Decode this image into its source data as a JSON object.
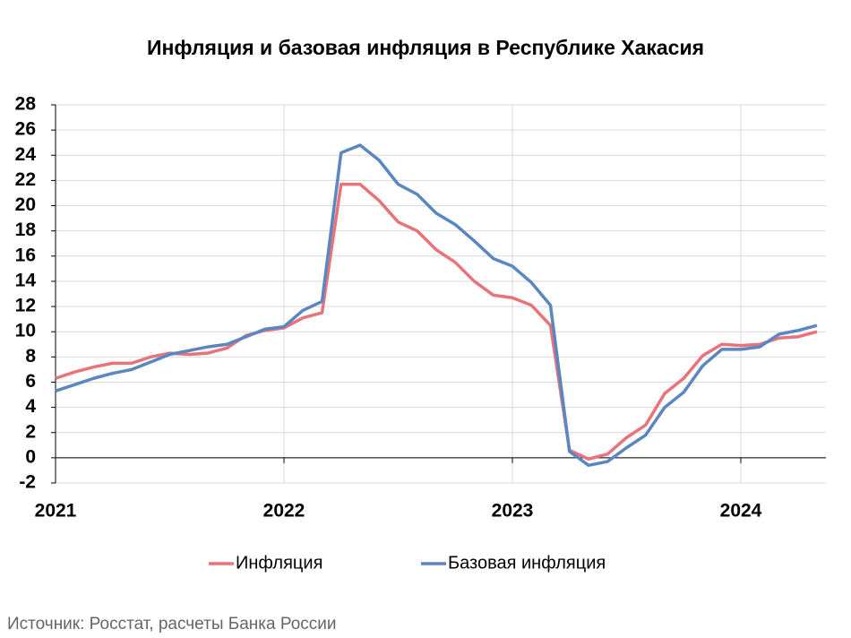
{
  "chart_data": {
    "type": "line",
    "title": "Инфляция и базовая инфляция в Республике Хакасия",
    "source": "Источник: Росстат, расчеты Банка России",
    "categories": [
      "2021",
      null,
      null,
      null,
      null,
      null,
      null,
      null,
      null,
      null,
      null,
      null,
      "2022",
      null,
      null,
      null,
      null,
      null,
      null,
      null,
      null,
      null,
      null,
      null,
      "2023",
      null,
      null,
      null,
      null,
      null,
      null,
      null,
      null,
      null,
      null,
      null,
      "2024",
      null,
      null,
      null,
      null
    ],
    "series": [
      {
        "name": "Инфляция",
        "color": "#e8737a",
        "values": [
          6.3,
          6.8,
          7.2,
          7.5,
          7.5,
          8.0,
          8.3,
          8.2,
          8.3,
          8.7,
          9.7,
          10.1,
          10.3,
          11.1,
          11.5,
          21.7,
          21.7,
          20.4,
          18.7,
          18.0,
          16.5,
          15.5,
          14.0,
          12.9,
          12.7,
          12.1,
          10.5,
          0.6,
          -0.1,
          0.3,
          1.6,
          2.6,
          5.1,
          6.3,
          8.1,
          9.0,
          8.9,
          9.0,
          9.5,
          9.6,
          10.0
        ]
      },
      {
        "name": "Базовая инфляция",
        "color": "#5b87c0",
        "values": [
          5.3,
          5.8,
          6.3,
          6.7,
          7.0,
          7.6,
          8.2,
          8.5,
          8.8,
          9.0,
          9.6,
          10.2,
          10.4,
          11.7,
          12.4,
          24.2,
          24.8,
          23.6,
          21.7,
          20.9,
          19.4,
          18.5,
          17.2,
          15.8,
          15.2,
          13.9,
          12.1,
          0.5,
          -0.6,
          -0.3,
          0.8,
          1.8,
          4.0,
          5.2,
          7.3,
          8.6,
          8.6,
          8.8,
          9.8,
          10.1,
          10.5
        ]
      }
    ],
    "ylim": [
      -2,
      28
    ],
    "yticks": [
      -2,
      0,
      2,
      4,
      6,
      8,
      10,
      12,
      14,
      16,
      18,
      20,
      22,
      24,
      26,
      28
    ],
    "grid": true,
    "legend": "bottom"
  }
}
